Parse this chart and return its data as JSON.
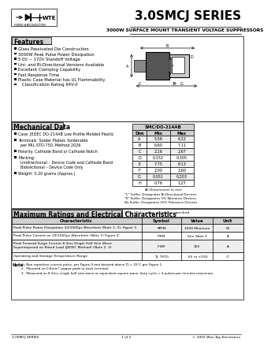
{
  "title": "3.0SMCJ SERIES",
  "subtitle": "3000W SURFACE MOUNT TRANSIENT VOLTAGE SUPPRESSORS",
  "features_title": "Features",
  "features": [
    "Glass Passivated Die Construction",
    "3000W Peak Pulse Power Dissipation",
    "5.0V ~ 170V Standoff Voltage",
    "Uni- and Bi-Directional Versions Available",
    "Excellent Clamping Capability",
    "Fast Response Time",
    "Plastic Case Material has UL Flammability",
    "   Classification Rating 94V-0"
  ],
  "mech_title": "Mechanical Data",
  "mech_items": [
    [
      "Case: JEDEC DO-214AB Low Profile Molded Plastic"
    ],
    [
      "Terminals: Solder Plated, Solderable",
      "  per MIL-STD-750, Method 2026"
    ],
    [
      "Polarity: Cathode Band or Cathode Notch"
    ],
    [
      "Marking:",
      "  Unidirectional – Device Code and Cathode Band",
      "  Bidirectional – Device Code Only"
    ],
    [
      "Weight: 0.20 grams (Approx.)"
    ]
  ],
  "dim_table_title": "SMC/DO-214AB",
  "dim_headers": [
    "Dim",
    "Min",
    "Max"
  ],
  "dim_rows": [
    [
      "A",
      "5.59",
      "6.22"
    ],
    [
      "B",
      "6.60",
      "7.11"
    ],
    [
      "C",
      "2.16",
      "2.67"
    ],
    [
      "D",
      "0.152",
      "0.305"
    ],
    [
      "E",
      "7.75",
      "8.13"
    ],
    [
      "F",
      "2.00",
      "2.60"
    ],
    [
      "G",
      "0.051",
      "0.203"
    ],
    [
      "H",
      "0.76",
      "1.27"
    ]
  ],
  "dim_note": "All Dimensions in mm",
  "suffix_notes": [
    "\"C\" Suffix: Designates Bi-Directional Devices",
    "\"K\" Suffix: Designates 5% Tolerance Devices",
    "No Suffix: Designates 10% Tolerance Devices"
  ],
  "max_title": "Maximum Ratings and Electrical Characteristics",
  "max_subtitle": "@TJ=25°C unless otherwise specified",
  "table_headers": [
    "Characteristic",
    "Symbol",
    "Value",
    "Unit"
  ],
  "table_rows": [
    [
      "Peak Pulse Power Dissipation 10/1000μs Waveform (Note 1, 2), Figure 3",
      "PPPM",
      "3000 Minimum",
      "W"
    ],
    [
      "Peak Pulse Current on 10/1000μs Waveform (Note 1) Figure 4",
      "IPPM",
      "See Table 1",
      "A"
    ],
    [
      "Peak Forward Surge Current 8.3ms Single Half Sine Wave\nSuperimposed on Rated Load (JEDEC Method) (Note 2, 3)",
      "IFSM",
      "100",
      "A"
    ],
    [
      "Operating and Storage Temperature Range",
      "TJ, TSTG",
      "-55 to +150",
      "°C"
    ]
  ],
  "notes_label": "Note:",
  "notes": [
    "1.  Non-repetitive current pulse, per Figure 4 and derated above TJ = 25°C per Figure 1.",
    "2.  Mounted on 0.8mm² copper pads to each terminal.",
    "3.  Measured on 8.3ms, single half sine-wave or equivalent square wave, duty cycle = 4 pulses per minutes maximum."
  ],
  "footer_left": "3.0SMCJ SERIES",
  "footer_center": "1 of 5",
  "footer_right": "© 2002 Won-Top Electronics",
  "bg_color": "#ffffff",
  "border_color": "#000000",
  "section_label_bg": "#d0d0d0",
  "table_header_bg": "#d0d0d0"
}
